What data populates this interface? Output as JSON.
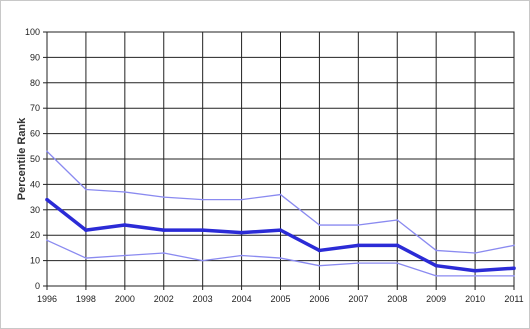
{
  "chart_data": {
    "type": "line",
    "title": "",
    "xlabel": "",
    "ylabel": "Percentile Rank",
    "x": [
      "1996",
      "1998",
      "2000",
      "2002",
      "2003",
      "2004",
      "2005",
      "2006",
      "2007",
      "2008",
      "2009",
      "2010",
      "2011"
    ],
    "y_ticks": [
      "0",
      "10",
      "20",
      "30",
      "40",
      "50",
      "60",
      "70",
      "80",
      "90",
      "100"
    ],
    "ylim": [
      0,
      100
    ],
    "grid": true,
    "legend": "none",
    "series": [
      {
        "role": "upper",
        "color": "#8a8af0",
        "values": [
          53,
          38,
          37,
          35,
          34,
          34,
          36,
          24,
          24,
          26,
          14,
          13,
          16
        ]
      },
      {
        "role": "estimate",
        "color": "#2b2bd6",
        "values": [
          34,
          22,
          24,
          22,
          22,
          21,
          22,
          14,
          16,
          16,
          8,
          6,
          7
        ]
      },
      {
        "role": "lower",
        "color": "#8a8af0",
        "values": [
          18,
          11,
          12,
          13,
          10,
          12,
          11,
          8,
          9,
          9,
          4,
          4,
          4
        ]
      }
    ]
  }
}
